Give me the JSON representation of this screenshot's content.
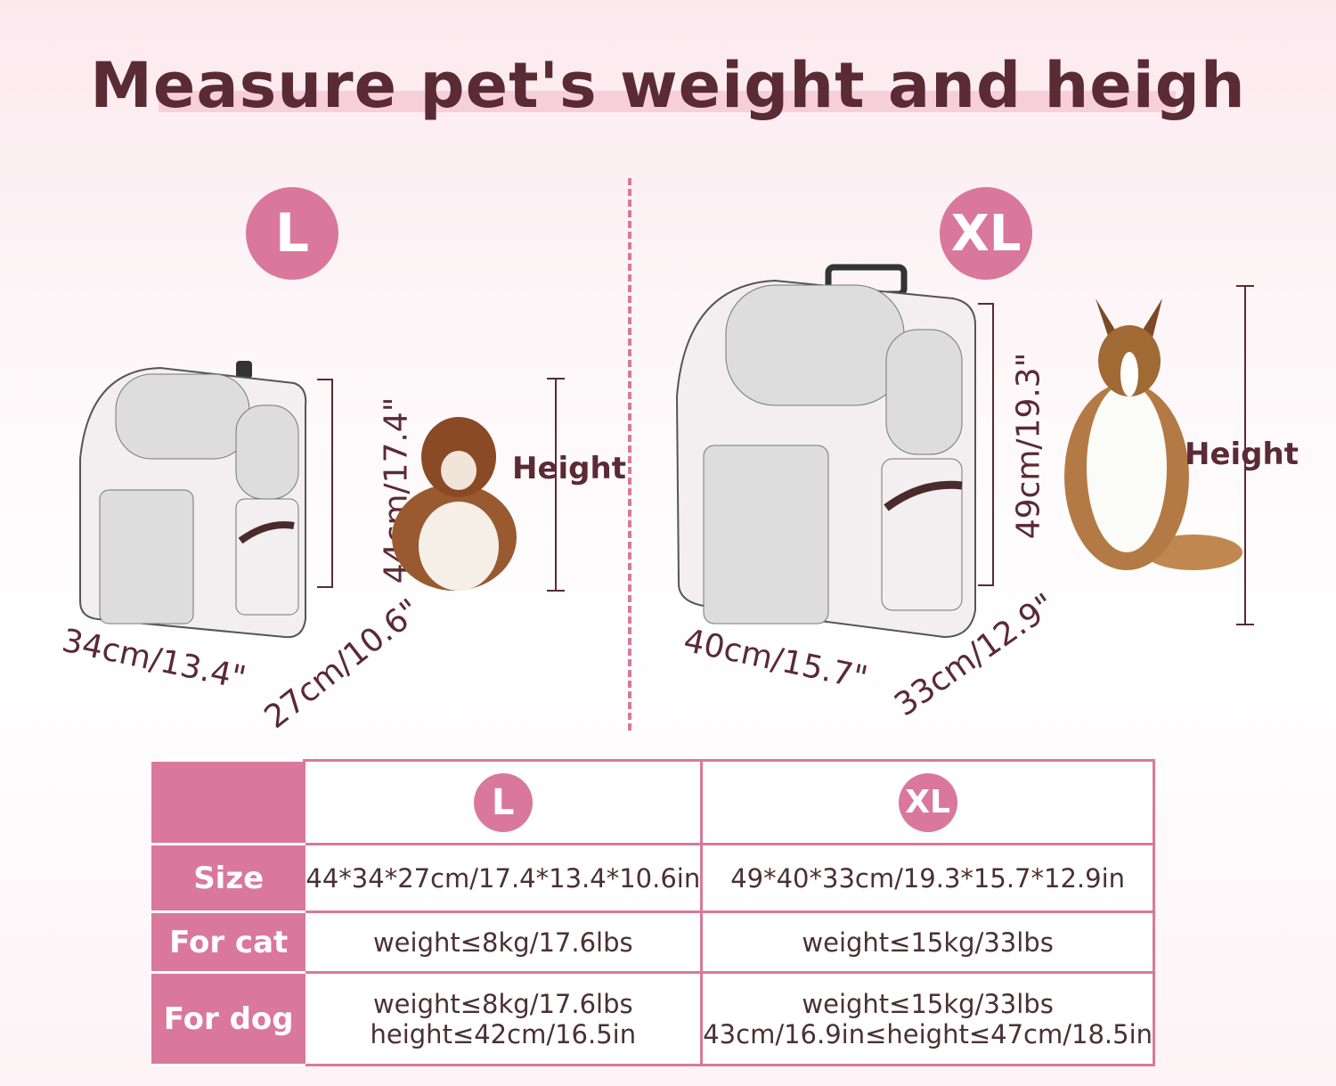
{
  "title": "Measure pet's weight and heigh",
  "colors": {
    "accent": "#d9789a",
    "text": "#5a2a35"
  },
  "sizes": [
    {
      "badge": "L",
      "height_dim": "44cm/17.4\"",
      "width_dim": "34cm/13.4\"",
      "depth_dim": "27cm/10.6\"",
      "height_label": "Height"
    },
    {
      "badge": "XL",
      "height_dim": "49cm/19.3\"",
      "width_dim": "40cm/15.7\"",
      "depth_dim": "33cm/12.9\"",
      "height_label": "Height"
    }
  ],
  "table": {
    "header": [
      "L",
      "XL"
    ],
    "rows": [
      {
        "label": "Size",
        "l": "44*34*27cm/17.4*13.4*10.6in",
        "xl": "49*40*33cm/19.3*15.7*12.9in"
      },
      {
        "label": "For cat",
        "l": "weight≤8kg/17.6lbs",
        "xl": "weight≤15kg/33lbs"
      },
      {
        "label": "For dog",
        "l": "weight≤8kg/17.6lbs",
        "l2": "height≤42cm/16.5in",
        "xl": "weight≤15kg/33lbs",
        "xl2": "43cm/16.9in≤height≤47cm/18.5in"
      }
    ]
  }
}
